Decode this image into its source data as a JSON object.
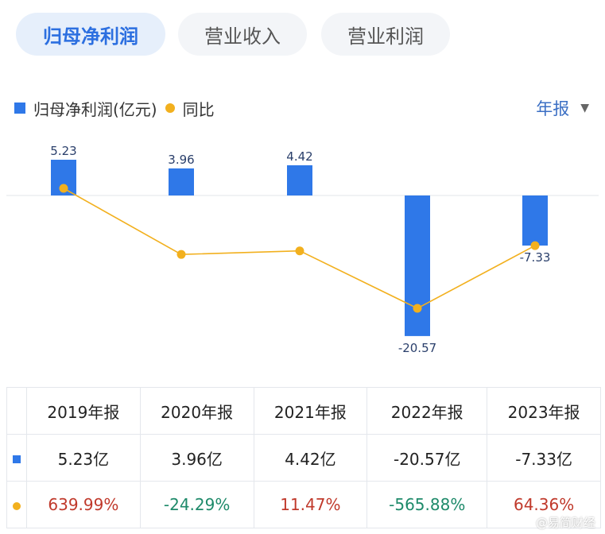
{
  "tabs": [
    {
      "label": "归母净利润",
      "active": true
    },
    {
      "label": "营业收入",
      "active": false
    },
    {
      "label": "营业利润",
      "active": false
    }
  ],
  "legend": {
    "bar_label": "归母净利润(亿元)",
    "line_label": "同比"
  },
  "period_selector": {
    "label": "年报",
    "icon": "caret-down-icon"
  },
  "colors": {
    "bar": "#2f78e8",
    "line": "#f2b01e",
    "positive": "#c0392b",
    "negative": "#1e8a6a",
    "active_tab": "#2c6fe0"
  },
  "chart_data": {
    "type": "bar",
    "categories": [
      "2019年报",
      "2020年报",
      "2021年报",
      "2022年报",
      "2023年报"
    ],
    "series": [
      {
        "name": "归母净利润(亿元)",
        "type": "bar",
        "values": [
          5.23,
          3.96,
          4.42,
          -20.57,
          -7.33
        ],
        "data_labels": [
          "5.23",
          "3.96",
          "4.42",
          "-20.57",
          "-7.33"
        ]
      },
      {
        "name": "同比",
        "type": "line",
        "values": [
          639.99,
          -24.29,
          11.47,
          -565.88,
          64.36
        ]
      }
    ]
  },
  "table": {
    "headers": [
      "2019年报",
      "2020年报",
      "2021年报",
      "2022年报",
      "2023年报"
    ],
    "profit_row": [
      "5.23亿",
      "3.96亿",
      "4.42亿",
      "-20.57亿",
      "-7.33亿"
    ],
    "yoy_row": [
      "639.99%",
      "-24.29%",
      "11.47%",
      "-565.88%",
      "64.36%"
    ]
  },
  "watermark": "@易简财经"
}
